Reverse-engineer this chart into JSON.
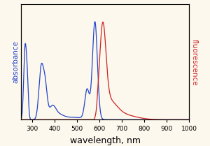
{
  "xlabel": "wavelength, nm",
  "ylabel_left": "absorbance",
  "ylabel_right": "fluorescence",
  "xmin": 250,
  "xmax": 1000,
  "bg_color": "#fdf8ee",
  "blue_color": "#2244cc",
  "red_color": "#cc2222",
  "xlabel_fontsize": 9,
  "ylabel_fontsize": 7.5,
  "tick_fontsize": 6.5,
  "xticks": [
    300,
    400,
    500,
    600,
    700,
    800,
    900,
    1000
  ]
}
